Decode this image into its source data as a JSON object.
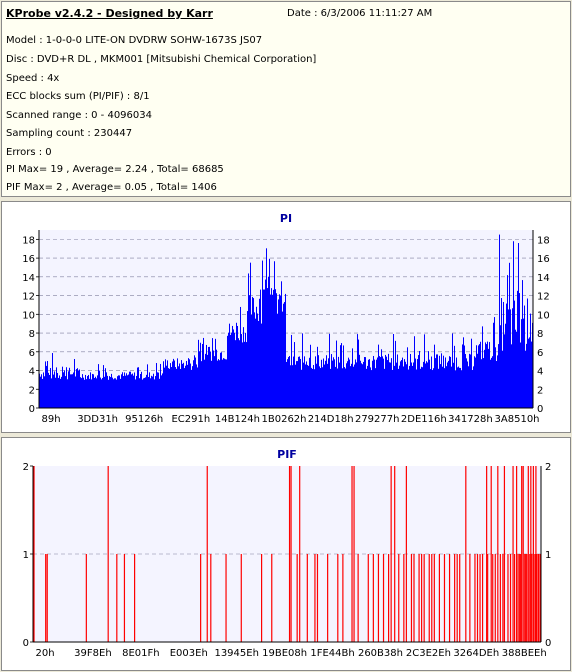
{
  "header": {
    "title": "KProbe v2.4.2 - Designed by Karr",
    "date": "Date : 6/3/2006 11:11:27 AM",
    "lines": [
      "Model : 1-0-0-0 LITE-ON DVDRW SOHW-1673S JS07",
      "Disc : DVD+R DL , MKM001 [Mitsubishi Chemical Corporation]",
      "Speed : 4x",
      "ECC blocks sum (PI/PIF) : 8/1",
      "Scanned range : 0 - 4096034",
      "Sampling count : 230447",
      "Errors : 0",
      "PI Max= 19 , Average= 2.24 , Total= 68685",
      "PIF Max= 2 , Average= 0.05 , Total= 1406"
    ]
  },
  "chart_data": [
    {
      "type": "bar",
      "title": "PI",
      "ylim": [
        0,
        19
      ],
      "y_ticks": [
        0,
        2,
        4,
        6,
        8,
        10,
        12,
        14,
        16,
        18
      ],
      "x_tick_labels": [
        "89h",
        "3DD31h",
        "95126h",
        "EC291h",
        "14B124h",
        "1B0262h",
        "214D18h",
        "279277h",
        "2DE116h",
        "341728h",
        "3A8510h"
      ],
      "grid": true,
      "color": "#0000ff",
      "baseline_segments": [
        {
          "start": 0.0,
          "end": 0.08,
          "base": 3,
          "spike": 6
        },
        {
          "start": 0.08,
          "end": 0.25,
          "base": 3,
          "spike": 5
        },
        {
          "start": 0.25,
          "end": 0.32,
          "base": 4,
          "spike": 7
        },
        {
          "start": 0.32,
          "end": 0.38,
          "base": 5,
          "spike": 9
        },
        {
          "start": 0.38,
          "end": 0.42,
          "base": 7,
          "spike": 12
        },
        {
          "start": 0.42,
          "end": 0.45,
          "base": 9,
          "spike": 16
        },
        {
          "start": 0.45,
          "end": 0.48,
          "base": 12,
          "spike": 18
        },
        {
          "start": 0.48,
          "end": 0.5,
          "base": 10,
          "spike": 15
        },
        {
          "start": 0.5,
          "end": 0.53,
          "base": 4,
          "spike": 8
        },
        {
          "start": 0.53,
          "end": 0.88,
          "base": 4,
          "spike": 8
        },
        {
          "start": 0.88,
          "end": 0.93,
          "base": 5,
          "spike": 10
        },
        {
          "start": 0.93,
          "end": 1.0,
          "base": 6,
          "spike": 19
        }
      ]
    },
    {
      "type": "bar",
      "title": "PIF",
      "ylim": [
        0,
        2
      ],
      "y_ticks": [
        0,
        1,
        2
      ],
      "x_tick_labels": [
        "20h",
        "39F8Eh",
        "8E01Fh",
        "E003Eh",
        "13945Eh",
        "19BE08h",
        "1FE44Bh",
        "260B38h",
        "2C3E2Eh",
        "3264DEh",
        "388BEEh"
      ],
      "grid": true,
      "color": "#ff0000",
      "spikes_level_2": [
        0.002,
        0.148,
        0.343,
        0.505,
        0.508,
        0.525,
        0.628,
        0.632,
        0.705,
        0.712,
        0.735,
        0.852,
        0.893,
        0.902,
        0.915,
        0.928,
        0.945,
        0.952,
        0.962,
        0.965,
        0.975,
        0.98,
        0.985,
        0.99
      ],
      "spikes_level_1": [
        0.025,
        0.028,
        0.105,
        0.165,
        0.18,
        0.2,
        0.33,
        0.35,
        0.38,
        0.41,
        0.45,
        0.47,
        0.52,
        0.54,
        0.555,
        0.56,
        0.58,
        0.6,
        0.61,
        0.64,
        0.66,
        0.67,
        0.68,
        0.69,
        0.7,
        0.72,
        0.73,
        0.745,
        0.75,
        0.76,
        0.765,
        0.77,
        0.78,
        0.785,
        0.79,
        0.8,
        0.81,
        0.82,
        0.83,
        0.835,
        0.84,
        0.86,
        0.87,
        0.875,
        0.88,
        0.885,
        0.895,
        0.905,
        0.91,
        0.92,
        0.925,
        0.935,
        0.94,
        0.948,
        0.955,
        0.958,
        0.96,
        0.968,
        0.97,
        0.972,
        0.978,
        0.982,
        0.988,
        0.992,
        0.995,
        0.998
      ]
    }
  ]
}
